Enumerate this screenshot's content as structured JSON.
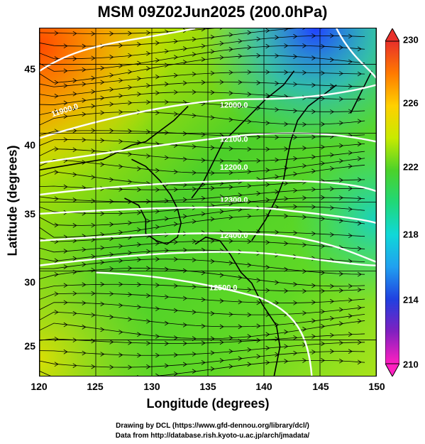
{
  "title": "MSM 09Z02Jun2025 (200.0hPa)",
  "axes": {
    "xlabel": "Longitude (degrees)",
    "ylabel": "Latitude  (degrees)",
    "xlim": [
      120,
      150
    ],
    "ylim": [
      22.4,
      47.6
    ],
    "xticks": [
      "120",
      "125",
      "130",
      "135",
      "140",
      "145",
      "150"
    ],
    "yticks": [
      "25",
      "30",
      "35",
      "40",
      "45"
    ]
  },
  "colorbar": {
    "range": [
      210,
      230
    ],
    "ticks": [
      "230",
      "226",
      "222",
      "218",
      "214",
      "210"
    ]
  },
  "contours": [
    {
      "label": "11900.0",
      "value": 11900
    },
    {
      "label": "12000.0",
      "value": 12000
    },
    {
      "label": "12100.0",
      "value": 12100
    },
    {
      "label": "12200.0",
      "value": 12200
    },
    {
      "label": "12300.0",
      "value": 12300
    },
    {
      "label": "12400.0",
      "value": 12400
    },
    {
      "label": "12500.0",
      "value": 12500
    }
  ],
  "credit": {
    "line1": "Drawing by DCL (https://www.gfd-dennou.org/library/dcl/)",
    "line2": "Data from http://database.rish.kyoto-u.ac.jp/arch/jmadata/"
  },
  "colors": {
    "contour": "#ffffff",
    "coastline": "#000000",
    "streamline": "#000000"
  }
}
